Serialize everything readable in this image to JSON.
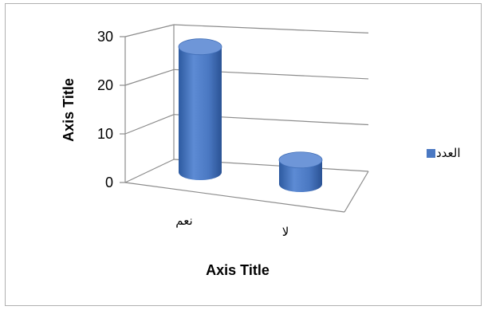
{
  "chart_data": {
    "type": "bar",
    "style": "3d-cylinder",
    "categories": [
      "نعم",
      "لا"
    ],
    "series": [
      {
        "name": "العدد",
        "values": [
          26,
          5
        ]
      }
    ],
    "xlabel": "Axis Title",
    "ylabel": "Axis Title",
    "ylim": [
      0,
      30
    ],
    "yticks": [
      "0",
      "10",
      "20",
      "30"
    ],
    "grid": true,
    "legend_position": "right",
    "colors": {
      "bar": "#4a78c2",
      "bar_dark": "#2d5aa0",
      "bar_top": "#6e96d8",
      "grid": "#8c8c8c"
    }
  }
}
